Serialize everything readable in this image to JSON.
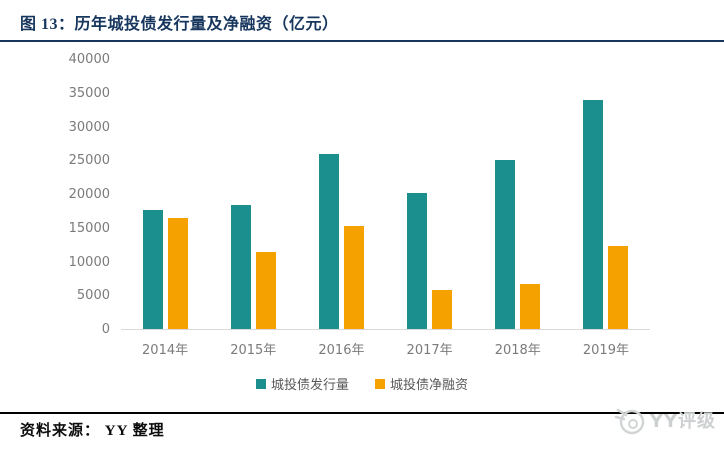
{
  "figure": {
    "title": "图 13：历年城投债发行量及净融资（亿元）"
  },
  "chart_data": {
    "type": "bar",
    "title": "历年城投债发行量及净融资（亿元）",
    "categories": [
      "2014年",
      "2015年",
      "2016年",
      "2017年",
      "2018年",
      "2019年"
    ],
    "series": [
      {
        "name": "城投债发行量",
        "color": "#1B8E8E",
        "values": [
          17700,
          18300,
          25900,
          20100,
          25000,
          34000
        ]
      },
      {
        "name": "城投债净融资",
        "color": "#F5A100",
        "values": [
          16400,
          11400,
          15200,
          5800,
          6700,
          12300
        ]
      }
    ],
    "xlabel": "",
    "ylabel": "",
    "ylim": [
      0,
      40000
    ],
    "y_ticks": [
      0,
      5000,
      10000,
      15000,
      20000,
      25000,
      30000,
      35000,
      40000
    ],
    "grid": false,
    "legend_position": "bottom"
  },
  "footer": {
    "source_label": "资料来源： YY 整理"
  },
  "watermark": {
    "label": "YY评级"
  },
  "colors": {
    "title_navy": "#17365D",
    "series_teal": "#1B8E8E",
    "series_orange": "#F5A100",
    "axis_line": "#D9D9D9",
    "tick_text": "#7B7B7B",
    "legend_text": "#595959",
    "footer_rule": "#000000",
    "watermark_gray": "#CDD0D1"
  }
}
